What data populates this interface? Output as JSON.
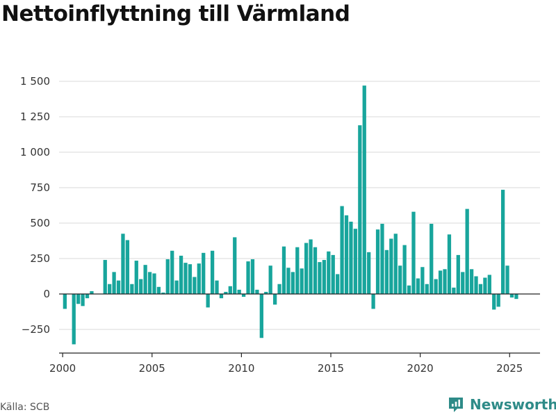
{
  "title": "Nettoinflyttning till Värmland",
  "source": "Källa: SCB",
  "brand": {
    "name": "Newsworthy",
    "icon": "newsworthy-logo-icon"
  },
  "colors": {
    "bar": "#18a59c",
    "brand": "#2e8b88",
    "grid": "#e0e0e0",
    "axis": "#222222"
  },
  "chart_data": {
    "type": "bar",
    "title": "Nettoinflyttning till Värmland",
    "xlabel": "",
    "ylabel": "",
    "ylim": [
      -400,
      1500
    ],
    "xlim": [
      1999.8,
      2026.7
    ],
    "grid": true,
    "y_ticks": [
      -250,
      0,
      250,
      500,
      750,
      1000,
      1250,
      1500
    ],
    "y_tick_labels": [
      "−250",
      "0",
      "250",
      "500",
      "750",
      "1 000",
      "1 250",
      "1 500"
    ],
    "x_ticks": [
      2000,
      2005,
      2010,
      2015,
      2020,
      2025
    ],
    "x_tick_labels": [
      "2000",
      "2005",
      "2010",
      "2015",
      "2020",
      "2025"
    ],
    "series": [
      {
        "values": [
          {
            "x": 2000.125,
            "y": -105
          },
          {
            "x": 2000.375,
            "y": 0
          },
          {
            "x": 2000.625,
            "y": -355
          },
          {
            "x": 2000.875,
            "y": -70
          },
          {
            "x": 2001.125,
            "y": -85
          },
          {
            "x": 2001.375,
            "y": -30
          },
          {
            "x": 2001.625,
            "y": 20
          },
          {
            "x": 2001.875,
            "y": 0
          },
          {
            "x": 2002.125,
            "y": 0
          },
          {
            "x": 2002.375,
            "y": 240
          },
          {
            "x": 2002.625,
            "y": 70
          },
          {
            "x": 2002.875,
            "y": 155
          },
          {
            "x": 2003.125,
            "y": 95
          },
          {
            "x": 2003.375,
            "y": 425
          },
          {
            "x": 2003.625,
            "y": 380
          },
          {
            "x": 2003.875,
            "y": 70
          },
          {
            "x": 2004.125,
            "y": 235
          },
          {
            "x": 2004.375,
            "y": 105
          },
          {
            "x": 2004.625,
            "y": 205
          },
          {
            "x": 2004.875,
            "y": 155
          },
          {
            "x": 2005.125,
            "y": 145
          },
          {
            "x": 2005.375,
            "y": 50
          },
          {
            "x": 2005.625,
            "y": 10
          },
          {
            "x": 2005.875,
            "y": 245
          },
          {
            "x": 2006.125,
            "y": 305
          },
          {
            "x": 2006.375,
            "y": 95
          },
          {
            "x": 2006.625,
            "y": 270
          },
          {
            "x": 2006.875,
            "y": 220
          },
          {
            "x": 2007.125,
            "y": 210
          },
          {
            "x": 2007.375,
            "y": 120
          },
          {
            "x": 2007.625,
            "y": 215
          },
          {
            "x": 2007.875,
            "y": 290
          },
          {
            "x": 2008.125,
            "y": -95
          },
          {
            "x": 2008.375,
            "y": 305
          },
          {
            "x": 2008.625,
            "y": 95
          },
          {
            "x": 2008.875,
            "y": -30
          },
          {
            "x": 2009.125,
            "y": 15
          },
          {
            "x": 2009.375,
            "y": 55
          },
          {
            "x": 2009.625,
            "y": 400
          },
          {
            "x": 2009.875,
            "y": 30
          },
          {
            "x": 2010.125,
            "y": -20
          },
          {
            "x": 2010.375,
            "y": 230
          },
          {
            "x": 2010.625,
            "y": 245
          },
          {
            "x": 2010.875,
            "y": 30
          },
          {
            "x": 2011.125,
            "y": -310
          },
          {
            "x": 2011.375,
            "y": 15
          },
          {
            "x": 2011.625,
            "y": 200
          },
          {
            "x": 2011.875,
            "y": -75
          },
          {
            "x": 2012.125,
            "y": 70
          },
          {
            "x": 2012.375,
            "y": 335
          },
          {
            "x": 2012.625,
            "y": 185
          },
          {
            "x": 2012.875,
            "y": 155
          },
          {
            "x": 2013.125,
            "y": 330
          },
          {
            "x": 2013.375,
            "y": 180
          },
          {
            "x": 2013.625,
            "y": 360
          },
          {
            "x": 2013.875,
            "y": 385
          },
          {
            "x": 2014.125,
            "y": 330
          },
          {
            "x": 2014.375,
            "y": 225
          },
          {
            "x": 2014.625,
            "y": 240
          },
          {
            "x": 2014.875,
            "y": 300
          },
          {
            "x": 2015.125,
            "y": 275
          },
          {
            "x": 2015.375,
            "y": 140
          },
          {
            "x": 2015.625,
            "y": 620
          },
          {
            "x": 2015.875,
            "y": 555
          },
          {
            "x": 2016.125,
            "y": 510
          },
          {
            "x": 2016.375,
            "y": 460
          },
          {
            "x": 2016.625,
            "y": 1190
          },
          {
            "x": 2016.875,
            "y": 1470
          },
          {
            "x": 2017.125,
            "y": 295
          },
          {
            "x": 2017.375,
            "y": -105
          },
          {
            "x": 2017.625,
            "y": 455
          },
          {
            "x": 2017.875,
            "y": 495
          },
          {
            "x": 2018.125,
            "y": 310
          },
          {
            "x": 2018.375,
            "y": 390
          },
          {
            "x": 2018.625,
            "y": 425
          },
          {
            "x": 2018.875,
            "y": 200
          },
          {
            "x": 2019.125,
            "y": 345
          },
          {
            "x": 2019.375,
            "y": 60
          },
          {
            "x": 2019.625,
            "y": 580
          },
          {
            "x": 2019.875,
            "y": 110
          },
          {
            "x": 2020.125,
            "y": 190
          },
          {
            "x": 2020.375,
            "y": 70
          },
          {
            "x": 2020.625,
            "y": 495
          },
          {
            "x": 2020.875,
            "y": 105
          },
          {
            "x": 2021.125,
            "y": 165
          },
          {
            "x": 2021.375,
            "y": 175
          },
          {
            "x": 2021.625,
            "y": 420
          },
          {
            "x": 2021.875,
            "y": 45
          },
          {
            "x": 2022.125,
            "y": 275
          },
          {
            "x": 2022.375,
            "y": 155
          },
          {
            "x": 2022.625,
            "y": 600
          },
          {
            "x": 2022.875,
            "y": 175
          },
          {
            "x": 2023.125,
            "y": 125
          },
          {
            "x": 2023.375,
            "y": 70
          },
          {
            "x": 2023.625,
            "y": 115
          },
          {
            "x": 2023.875,
            "y": 135
          },
          {
            "x": 2024.125,
            "y": -110
          },
          {
            "x": 2024.375,
            "y": -90
          },
          {
            "x": 2024.625,
            "y": 735
          },
          {
            "x": 2024.875,
            "y": 200
          },
          {
            "x": 2025.125,
            "y": -25
          },
          {
            "x": 2025.375,
            "y": -35
          }
        ]
      }
    ]
  }
}
